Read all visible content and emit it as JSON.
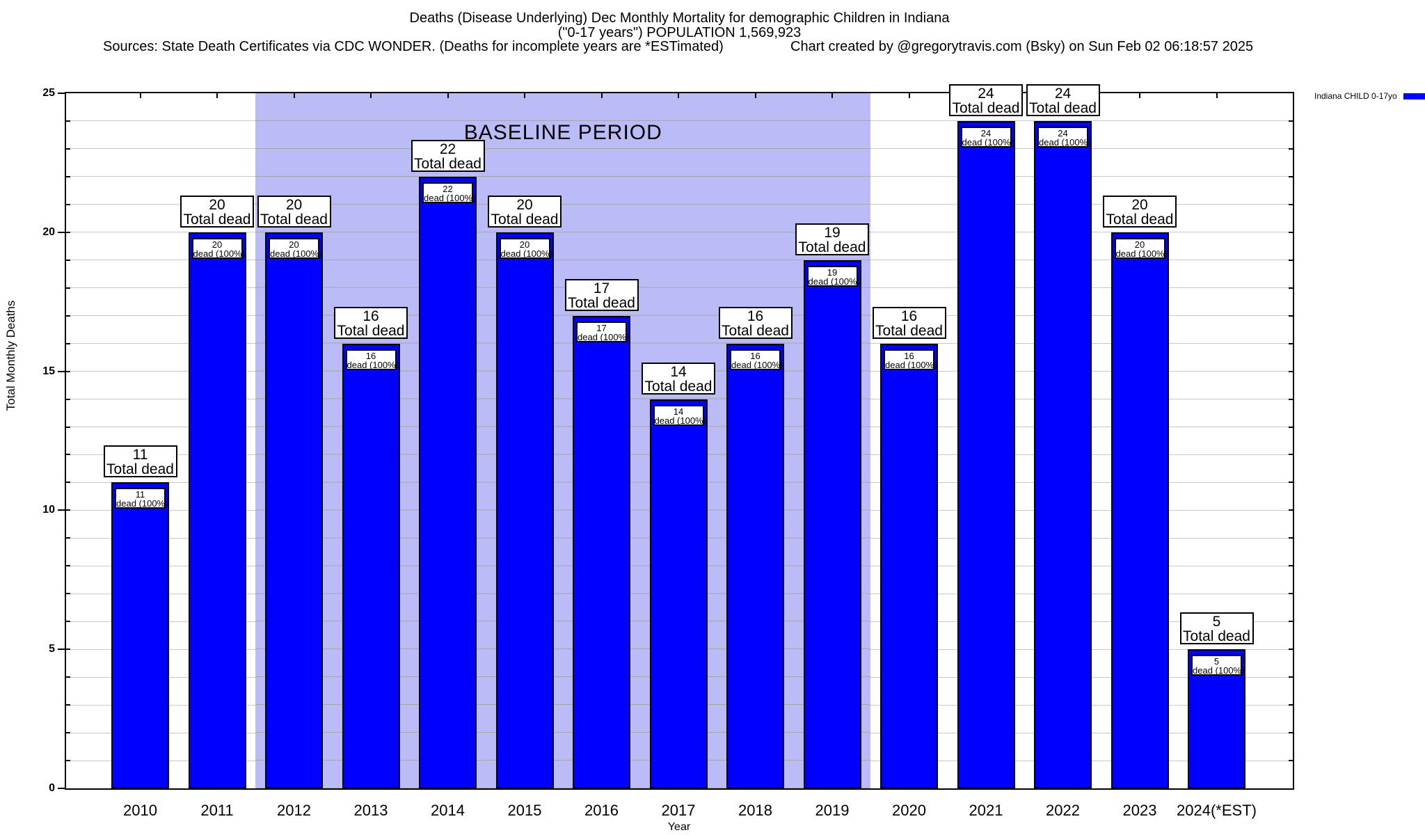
{
  "header": {
    "title_line1": "Deaths (Disease Underlying) Dec Monthly Mortality for demographic Children in Indiana",
    "title_line2": "(\"0-17 years\") POPULATION 1,569,923",
    "sources": "Sources: State Death Certificates via CDC WONDER. (Deaths for incomplete years are *ESTimated)",
    "credit": "Chart created by @gregorytravis.com (Bsky) on Sun Feb 02 06:18:57 2025"
  },
  "legend": {
    "label": "Indiana CHILD 0-17yo",
    "swatch_color": "#0000ff",
    "position": "top-right outside plot"
  },
  "chart_data": {
    "type": "bar",
    "title": "Deaths (Disease Underlying) Dec Monthly Mortality for demographic Children in Indiana (\"0-17 years\") POPULATION 1,569,923",
    "categories": [
      "2010",
      "2011",
      "2012",
      "2013",
      "2014",
      "2015",
      "2016",
      "2017",
      "2018",
      "2019",
      "2020",
      "2021",
      "2022",
      "2023",
      "2024(*EST)"
    ],
    "series": [
      {
        "name": "Indiana CHILD 0-17yo",
        "values": [
          11,
          20,
          20,
          16,
          22,
          20,
          17,
          14,
          16,
          19,
          16,
          24,
          24,
          20,
          5
        ]
      }
    ],
    "xlabel": "Year",
    "ylabel": "Total Monthly Deaths",
    "ylim": [
      0,
      25
    ],
    "yticks": [
      0,
      5,
      10,
      15,
      20,
      25
    ],
    "grid": "horizontal lines every 1 unit, light gray",
    "bar_color": "#0000ff",
    "bar_border_color": "#000000",
    "above_label_text": "Total dead",
    "inner_label_text": "dead (100%)",
    "baseline": {
      "label": "BASELINE PERIOD",
      "start_category": "2012",
      "end_category": "2019",
      "color": "#bbbbf8"
    }
  }
}
